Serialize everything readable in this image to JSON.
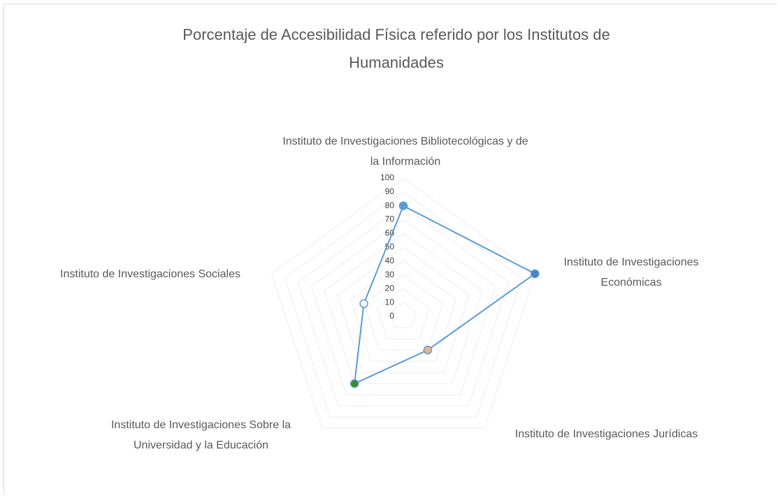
{
  "chart_data": {
    "type": "radar",
    "title": "Porcentaje de Accesibilidad Física referido por los Institutos de Humanidades",
    "categories": [
      "Instituto de Investigaciones Bibliotecológicas y de la Información",
      "Instituto de Investigaciones Económicas",
      "Instituto de Investigaciones Jurídicas",
      "Instituto de Investigaciones Sobre la Universidad y la Educación",
      "Instituto de Investigaciones Sociales"
    ],
    "values": [
      80,
      100,
      30,
      60,
      30
    ],
    "color": "#5b9bd5",
    "point_colors": [
      "#5b9bd5",
      "#4a7fc8",
      "#f4b183",
      "#3d8b27",
      "#ffffff"
    ],
    "ylim": [
      0,
      100
    ],
    "yticks": [
      0,
      10,
      20,
      30,
      40,
      50,
      60,
      70,
      80,
      90,
      100
    ],
    "grid": true
  }
}
